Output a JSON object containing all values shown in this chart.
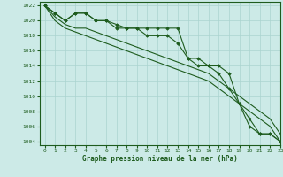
{
  "background_color": "#cceae7",
  "grid_color": "#aad4d0",
  "line_color": "#1e5c1e",
  "title": "Graphe pression niveau de la mer (hPa)",
  "xlim": [
    -0.5,
    23
  ],
  "ylim": [
    1003.5,
    1022.5
  ],
  "yticks": [
    1004,
    1006,
    1008,
    1010,
    1012,
    1014,
    1016,
    1018,
    1020,
    1022
  ],
  "xticks": [
    0,
    1,
    2,
    3,
    4,
    5,
    6,
    7,
    8,
    9,
    10,
    11,
    12,
    13,
    14,
    15,
    16,
    17,
    18,
    19,
    20,
    21,
    22,
    23
  ],
  "series": [
    {
      "x": [
        0,
        1,
        2,
        3,
        4,
        5,
        6,
        7,
        8,
        9,
        10,
        11,
        12,
        13,
        14,
        15,
        16,
        17,
        18,
        19,
        20,
        21,
        22,
        23
      ],
      "y": [
        1022,
        1021,
        1020,
        1021,
        1021,
        1020,
        1020,
        1019,
        1019,
        1019,
        1018,
        1018,
        1018,
        1017,
        1015,
        1015,
        1014,
        1014,
        1013,
        1009,
        1007,
        1005,
        1005,
        1004
      ],
      "marker": "D",
      "markersize": 1.8,
      "linewidth": 0.8
    },
    {
      "x": [
        0,
        1,
        2,
        3,
        4,
        5,
        6,
        7,
        8,
        9,
        10,
        11,
        12,
        13,
        14,
        15,
        16,
        17,
        18,
        19,
        20,
        21,
        22,
        23
      ],
      "y": [
        1022,
        1021,
        1020,
        1021,
        1021,
        1020,
        1020,
        1019.5,
        1019,
        1019,
        1019,
        1019,
        1019,
        1019,
        1015,
        1014,
        1014,
        1013,
        1011,
        1009,
        1006,
        1005,
        1005,
        1004
      ],
      "marker": "D",
      "markersize": 1.8,
      "linewidth": 0.8
    },
    {
      "x": [
        0,
        1,
        2,
        3,
        4,
        5,
        6,
        7,
        8,
        9,
        10,
        11,
        12,
        13,
        14,
        15,
        16,
        17,
        18,
        19,
        20,
        21,
        22,
        23
      ],
      "y": [
        1022,
        1020.5,
        1019.5,
        1019,
        1019,
        1018.5,
        1018,
        1017.5,
        1017,
        1016.5,
        1016,
        1015.5,
        1015,
        1014.5,
        1014,
        1013.5,
        1013,
        1012,
        1011,
        1010,
        1009,
        1008,
        1007,
        1005
      ],
      "marker": null,
      "markersize": 0,
      "linewidth": 0.8
    },
    {
      "x": [
        0,
        1,
        2,
        3,
        4,
        5,
        6,
        7,
        8,
        9,
        10,
        11,
        12,
        13,
        14,
        15,
        16,
        17,
        18,
        19,
        20,
        21,
        22,
        23
      ],
      "y": [
        1022,
        1020,
        1019,
        1018.5,
        1018,
        1017.5,
        1017,
        1016.5,
        1016,
        1015.5,
        1015,
        1014.5,
        1014,
        1013.5,
        1013,
        1012.5,
        1012,
        1011,
        1010,
        1009,
        1008,
        1007,
        1006,
        1004
      ],
      "marker": null,
      "markersize": 0,
      "linewidth": 0.8
    }
  ]
}
